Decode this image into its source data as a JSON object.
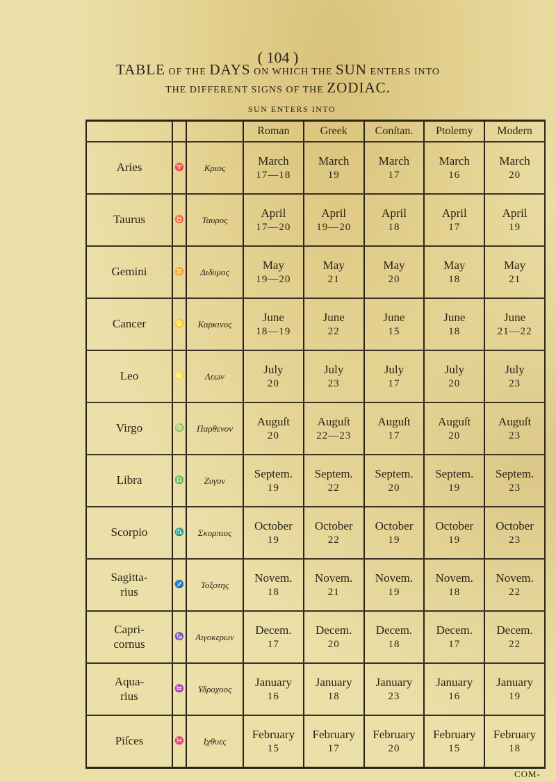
{
  "page_number": "( 104 )",
  "title": {
    "line1": [
      {
        "text": "TABLE",
        "big": true
      },
      {
        "text": " OF THE ",
        "big": false
      },
      {
        "text": "DAYS",
        "big": true
      },
      {
        "text": " ON WHICH THE ",
        "big": false
      },
      {
        "text": "SUN",
        "big": true
      },
      {
        "text": " ENTERS INTO",
        "big": false
      }
    ],
    "line2_small": "THE DIFFERENT SIGNS OF THE ",
    "line2_big": "ZODIAC."
  },
  "subheading": "SUN ENTERS INTO",
  "table": {
    "columns": [
      "Roman",
      "Greek",
      "Conſtan.",
      "Ptolemy",
      "Modern"
    ],
    "rows": [
      {
        "sign": "Aries",
        "symbol": "♈",
        "greek": "Κριος",
        "dates": [
          [
            "March",
            "17—18"
          ],
          [
            "March",
            "19"
          ],
          [
            "March",
            "17"
          ],
          [
            "March",
            "16"
          ],
          [
            "March",
            "20"
          ]
        ]
      },
      {
        "sign": "Taurus",
        "symbol": "♉",
        "greek": "Ταυρος",
        "dates": [
          [
            "April",
            "17—20"
          ],
          [
            "April",
            "19—20"
          ],
          [
            "April",
            "18"
          ],
          [
            "April",
            "17"
          ],
          [
            "April",
            "19"
          ]
        ]
      },
      {
        "sign": "Gemini",
        "symbol": "♊",
        "greek": "Διδυμος",
        "dates": [
          [
            "May",
            "19—20"
          ],
          [
            "May",
            "21"
          ],
          [
            "May",
            "20"
          ],
          [
            "May",
            "18"
          ],
          [
            "May",
            "21"
          ]
        ]
      },
      {
        "sign": "Cancer",
        "symbol": "♋",
        "greek": "Καρκινος",
        "dates": [
          [
            "June",
            "18—19"
          ],
          [
            "June",
            "22"
          ],
          [
            "June",
            "15"
          ],
          [
            "June",
            "18"
          ],
          [
            "June",
            "21—22"
          ]
        ]
      },
      {
        "sign": "Leo",
        "symbol": "♌",
        "greek": "Λεων",
        "dates": [
          [
            "July",
            "20"
          ],
          [
            "July",
            "23"
          ],
          [
            "July",
            "17"
          ],
          [
            "July",
            "20"
          ],
          [
            "July",
            "23"
          ]
        ]
      },
      {
        "sign": "Virgo",
        "symbol": "♍",
        "greek": "Παρθενον",
        "dates": [
          [
            "Auguſt",
            "20"
          ],
          [
            "Auguſt",
            "22—23"
          ],
          [
            "Auguſt",
            "17"
          ],
          [
            "Auguſt",
            "20"
          ],
          [
            "Auguſt",
            "23"
          ]
        ]
      },
      {
        "sign": "Libra",
        "symbol": "♎",
        "greek": "Ζυγον",
        "dates": [
          [
            "Septem.",
            "19"
          ],
          [
            "Septem.",
            "22"
          ],
          [
            "Septem.",
            "20"
          ],
          [
            "Septem.",
            "19"
          ],
          [
            "Septem.",
            "23"
          ]
        ]
      },
      {
        "sign": "Scorpio",
        "symbol": "♏",
        "greek": "Σκορπιος",
        "dates": [
          [
            "October",
            "19"
          ],
          [
            "October",
            "22"
          ],
          [
            "October",
            "19"
          ],
          [
            "October",
            "19"
          ],
          [
            "October",
            "23"
          ]
        ]
      },
      {
        "sign": "Sagitta-\nrius",
        "symbol": "♐",
        "greek": "Τοξοτης",
        "dates": [
          [
            "Novem.",
            "18"
          ],
          [
            "Novem.",
            "21"
          ],
          [
            "Novem.",
            "19"
          ],
          [
            "Novem.",
            "18"
          ],
          [
            "Novem.",
            "22"
          ]
        ]
      },
      {
        "sign": "Capri-\ncornus",
        "symbol": "♑",
        "greek": "Αιγοκερων",
        "dates": [
          [
            "Decem.",
            "17"
          ],
          [
            "Decem.",
            "20"
          ],
          [
            "Decem.",
            "18"
          ],
          [
            "Decem.",
            "17"
          ],
          [
            "Decem.",
            "22"
          ]
        ]
      },
      {
        "sign": "Aqua-\nrius",
        "symbol": "♒",
        "greek": "Υδροχοος",
        "dates": [
          [
            "January",
            "16"
          ],
          [
            "January",
            "18"
          ],
          [
            "January",
            "23"
          ],
          [
            "January",
            "16"
          ],
          [
            "January",
            "19"
          ]
        ]
      },
      {
        "sign": "Piſces",
        "symbol": "♓",
        "greek": "Ιχθυες",
        "dates": [
          [
            "February",
            "15"
          ],
          [
            "February",
            "17"
          ],
          [
            "February",
            "20"
          ],
          [
            "February",
            "15"
          ],
          [
            "February",
            "18"
          ]
        ]
      }
    ]
  },
  "catchword": "COM-",
  "colors": {
    "paper": "#ebe0a8",
    "ink": "#2a2418",
    "stain": "#d9c27a"
  }
}
